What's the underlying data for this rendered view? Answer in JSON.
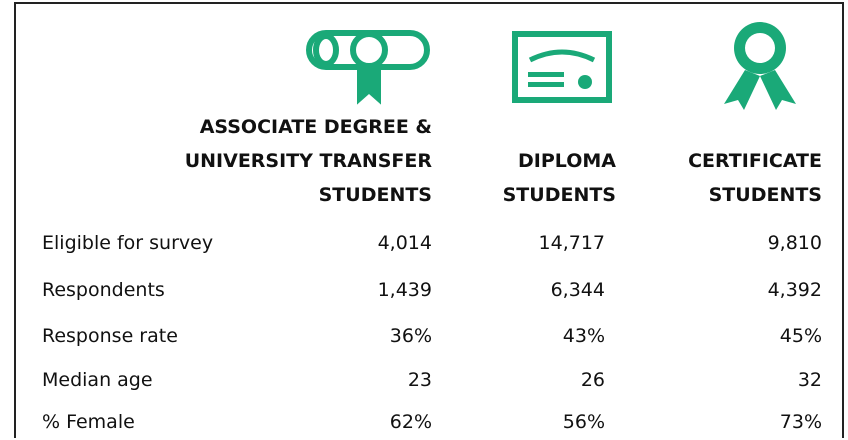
{
  "table": {
    "columns": [
      "ASSOCIATE DEGREE & UNIVERSITY TRANSFER STUDENTS",
      "DIPLOMA STUDENTS",
      "CERTIFICATE STUDENTS"
    ],
    "rows": [
      [
        "Eligible for survey",
        "4,014",
        "14,717",
        "9,810"
      ],
      [
        "Respondents",
        "1,439",
        "6,344",
        "4,392"
      ],
      [
        "Response rate",
        "36%",
        "43%",
        "45%"
      ],
      [
        "Median age",
        "23",
        "26",
        "32"
      ],
      [
        "% Female",
        "62%",
        "56%",
        "73%"
      ]
    ]
  }
}
